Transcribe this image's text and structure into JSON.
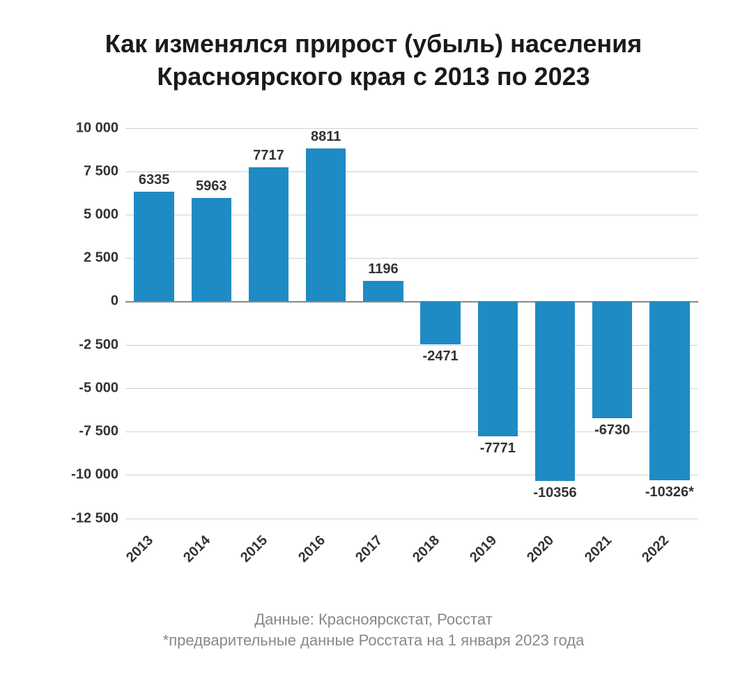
{
  "chart": {
    "type": "bar",
    "title": "Как изменялся прирост (убыль) населения Красноярского края с 2013 по 2023",
    "categories": [
      "2013",
      "2014",
      "2015",
      "2016",
      "2017",
      "2018",
      "2019",
      "2020",
      "2021",
      "2022"
    ],
    "values": [
      6335,
      5963,
      7717,
      8811,
      1196,
      -2471,
      -7771,
      -10356,
      -6730,
      -10326
    ],
    "value_labels": [
      "6335",
      "5963",
      "7717",
      "8811",
      "1196",
      "-2471",
      "-7771",
      "-10356",
      "-6730",
      "-10326*"
    ],
    "bar_color": "#1f8bc4",
    "y_ticks": [
      10000,
      7500,
      5000,
      2500,
      0,
      -2500,
      -5000,
      -7500,
      -10000,
      -12500
    ],
    "y_tick_labels": [
      "10 000",
      "7 500",
      "5 000",
      "2 500",
      "0",
      "-2 500",
      "-5 000",
      "-7 500",
      "-10 000",
      "-12 500"
    ],
    "ylim": [
      -12500,
      10000
    ],
    "grid_color": "#d0d0d0",
    "zero_line_color": "#888888",
    "background_color": "#ffffff",
    "title_fontsize": 36,
    "label_fontsize": 20,
    "bar_width": 0.7,
    "footnote_line1": "Данные: Красноярскстат, Росстат",
    "footnote_line2": "*предварительные данные Росстата на 1 января 2023 года",
    "footnote_color": "#888888",
    "text_color": "#333333"
  }
}
